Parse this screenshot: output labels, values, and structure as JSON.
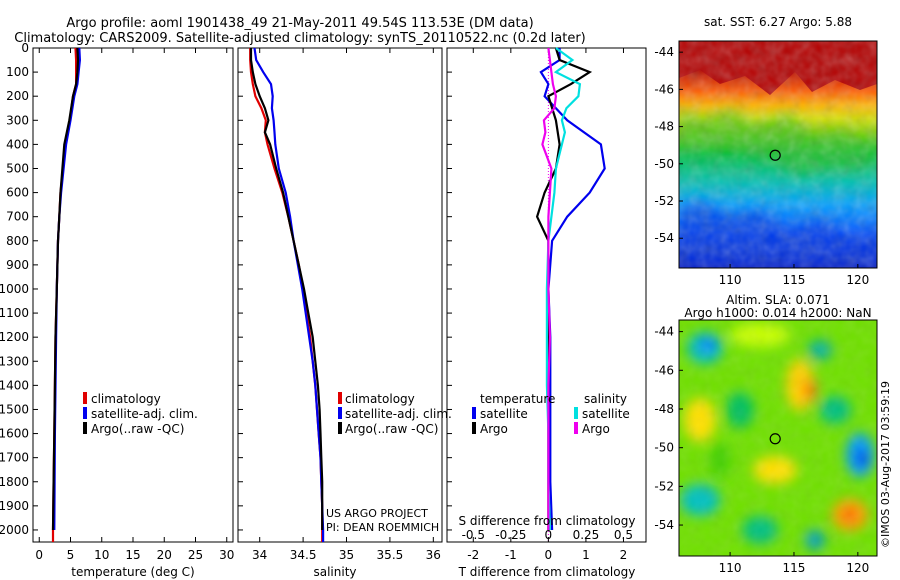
{
  "header": {
    "title_line1": "Argo profile: aoml 1901438_49 21-May-2011 49.54S 113.53E (DM data)",
    "title_line2": "Climatology: CARS2009. Satellite-adjusted climatology: synTS_20110522.nc (0.2d later)"
  },
  "credits": {
    "project": "US ARGO PROJECT",
    "pi": "PI: DEAN ROEMMICH",
    "imos": "©IMOS 03-Aug-2017 03:59:19"
  },
  "colors": {
    "climatology": "#e00000",
    "satellite": "#0000ee",
    "argo": "#000000",
    "sat_salinity": "#00e0e0",
    "argo_salinity": "#ee00ee"
  },
  "chart_data": [
    {
      "type": "line",
      "name": "temperature-panel",
      "xlabel": "temperature (deg C)",
      "ylabel": "",
      "xlim": [
        -1,
        31
      ],
      "ylim": [
        2050,
        0
      ],
      "xticks": [
        "0",
        "5",
        "10",
        "15",
        "20",
        "25",
        "30"
      ],
      "yticks": [
        "0",
        "100",
        "200",
        "300",
        "400",
        "500",
        "600",
        "700",
        "800",
        "900",
        "1000",
        "1100",
        "1200",
        "1300",
        "1400",
        "1500",
        "1600",
        "1700",
        "1800",
        "1900",
        "2000"
      ],
      "legend": [
        "climatology",
        "satellite-adj. clim.",
        "Argo(..raw -QC)"
      ],
      "legend_position": "middle",
      "series": [
        {
          "name": "climatology",
          "color": "#e00000",
          "depth": [
            0,
            50,
            100,
            150,
            200,
            300,
            400,
            500,
            600,
            700,
            800,
            1000,
            1200,
            1400,
            1600,
            1800,
            2000,
            2050
          ],
          "values": [
            5.8,
            5.9,
            5.9,
            5.9,
            5.4,
            4.9,
            4.2,
            3.8,
            3.4,
            3.2,
            3.0,
            2.8,
            2.6,
            2.5,
            2.4,
            2.3,
            2.2,
            2.2
          ]
        },
        {
          "name": "satellite-adj. clim.",
          "color": "#0000ee",
          "depth": [
            0,
            50,
            100,
            150,
            200,
            300,
            400,
            500,
            600,
            700,
            800,
            1000,
            1200,
            1400,
            1600,
            1800,
            2000
          ],
          "values": [
            6.4,
            6.5,
            6.3,
            6.1,
            5.6,
            5.0,
            4.3,
            3.9,
            3.5,
            3.2,
            3.0,
            2.8,
            2.7,
            2.6,
            2.5,
            2.45,
            2.4
          ]
        },
        {
          "name": "Argo(..raw -QC)",
          "color": "#000000",
          "depth": [
            0,
            50,
            100,
            150,
            200,
            300,
            400,
            500,
            600,
            700,
            800,
            1000,
            1200,
            1400,
            1600,
            1800,
            2000
          ],
          "values": [
            6.1,
            6.2,
            6.1,
            5.9,
            5.4,
            4.8,
            4.0,
            3.7,
            3.4,
            3.2,
            3.0,
            2.8,
            2.6,
            2.5,
            2.4,
            2.3,
            2.2
          ]
        }
      ]
    },
    {
      "type": "line",
      "name": "salinity-panel",
      "xlabel": "salinity",
      "ylabel": "",
      "xlim": [
        33.75,
        36.1
      ],
      "ylim": [
        2050,
        0
      ],
      "xticks": [
        "34",
        "34.5",
        "35",
        "35.5",
        "36"
      ],
      "legend": [
        "climatology",
        "satellite-adj. clim.",
        "Argo(..raw -QC)"
      ],
      "legend_position": "middle",
      "series": [
        {
          "name": "climatology",
          "color": "#e00000",
          "depth": [
            0,
            50,
            100,
            150,
            200,
            250,
            300,
            350,
            400,
            500,
            600,
            700,
            800,
            900,
            1000,
            1100,
            1200,
            1300,
            1400,
            1500,
            1600,
            1700,
            1800,
            1900,
            2000,
            2050
          ],
          "values": [
            33.89,
            33.89,
            33.9,
            33.92,
            33.95,
            34.02,
            34.07,
            34.06,
            34.09,
            34.17,
            34.26,
            34.33,
            34.39,
            34.45,
            34.5,
            34.54,
            34.58,
            34.61,
            34.64,
            34.66,
            34.68,
            34.7,
            34.71,
            34.72,
            34.72,
            34.72
          ]
        },
        {
          "name": "satellite-adj. clim.",
          "color": "#0000ee",
          "depth": [
            0,
            50,
            100,
            150,
            200,
            250,
            300,
            350,
            400,
            500,
            600,
            700,
            800,
            900,
            1000,
            1100,
            1200,
            1300,
            1400,
            1500,
            1600,
            1700,
            1800,
            1900,
            2000,
            2050
          ],
          "values": [
            33.94,
            33.96,
            34.04,
            34.13,
            34.15,
            34.14,
            34.16,
            34.17,
            34.18,
            34.22,
            34.3,
            34.35,
            34.39,
            34.44,
            34.49,
            34.53,
            34.57,
            34.61,
            34.64,
            34.66,
            34.68,
            34.7,
            34.71,
            34.72,
            34.73,
            34.73
          ]
        },
        {
          "name": "Argo(..raw -QC)",
          "color": "#000000",
          "depth": [
            0,
            50,
            100,
            150,
            200,
            250,
            300,
            350,
            400,
            500,
            600,
            700,
            800,
            900,
            1000,
            1100,
            1200,
            1300,
            1400,
            1500,
            1600,
            1700,
            1800,
            1900,
            2000
          ],
          "values": [
            33.9,
            33.9,
            33.92,
            33.95,
            34.0,
            34.06,
            34.1,
            34.06,
            34.12,
            34.19,
            34.27,
            34.33,
            34.39,
            34.45,
            34.51,
            34.56,
            34.61,
            34.64,
            34.67,
            34.69,
            34.7,
            34.71,
            34.72,
            34.72,
            34.72
          ]
        }
      ]
    },
    {
      "type": "line",
      "name": "difference-panel",
      "xlabel": "T difference from climatology",
      "x2label": "S difference from climatology",
      "ylabel": "",
      "xlim": [
        -2.7,
        2.6
      ],
      "ylim": [
        2050,
        0
      ],
      "xticks": [
        "-2",
        "-1",
        "0",
        "1",
        "2"
      ],
      "x2ticks": [
        "-0.5",
        "-0.25",
        "0",
        "0.25",
        "0.5"
      ],
      "legend_titles": [
        "temperature",
        "salinity"
      ],
      "legend_temperature": [
        "satellite",
        "Argo"
      ],
      "legend_salinity": [
        "satellite",
        "Argo"
      ],
      "legend_position": "middle",
      "series": [
        {
          "name": "temperature satellite",
          "color": "#0000ee",
          "depth": [
            0,
            50,
            100,
            150,
            200,
            300,
            400,
            500,
            600,
            700,
            800,
            1000,
            1200,
            1400,
            1600,
            1800,
            2000
          ],
          "values": [
            0.3,
            0.3,
            -0.2,
            0.0,
            -0.1,
            0.5,
            1.4,
            1.5,
            1.1,
            0.5,
            0.1,
            0.0,
            0.05,
            0.05,
            0.05,
            0.05,
            0.1
          ]
        },
        {
          "name": "temperature Argo",
          "color": "#000000",
          "depth": [
            0,
            50,
            100,
            150,
            200,
            300,
            400,
            500,
            600,
            700,
            800,
            1000,
            1200,
            1400,
            1600,
            1800,
            2000
          ],
          "values": [
            0.2,
            0.3,
            1.1,
            0.6,
            0.0,
            0.2,
            0.3,
            0.2,
            -0.1,
            -0.3,
            0.0,
            0.0,
            0.0,
            0.0,
            0.0,
            0.0,
            0.0
          ]
        },
        {
          "name": "salinity satellite",
          "color": "#00e0e0",
          "depth": [
            0,
            50,
            100,
            150,
            200,
            250,
            300,
            350,
            400,
            500,
            600,
            700,
            800,
            1000,
            1200,
            1400,
            1600,
            1800,
            2000
          ],
          "values": [
            0.05,
            0.16,
            0.05,
            0.21,
            0.2,
            0.12,
            0.09,
            0.11,
            0.09,
            0.05,
            0.04,
            0.02,
            0.0,
            -0.01,
            -0.01,
            -0.01,
            0.0,
            0.0,
            0.01
          ]
        },
        {
          "name": "salinity Argo",
          "color": "#ee00ee",
          "depth": [
            0,
            50,
            100,
            150,
            200,
            250,
            300,
            350,
            400,
            500,
            600,
            700,
            800,
            1000,
            1200,
            1400,
            1600,
            1800,
            2000
          ],
          "values": [
            0.0,
            0.01,
            0.02,
            0.03,
            0.05,
            0.04,
            -0.03,
            -0.02,
            -0.04,
            0.02,
            0.01,
            0.0,
            0.0,
            0.0,
            0.01,
            0.0,
            0.0,
            0.0,
            0.0
          ]
        }
      ]
    },
    {
      "type": "heatmap",
      "name": "sst-map",
      "title": "sat. SST: 6.27 Argo: 5.88",
      "xticks": [
        "110",
        "115",
        "120"
      ],
      "yticks": [
        "-44",
        "-46",
        "-48",
        "-50",
        "-52",
        "-54"
      ],
      "xlim": [
        106,
        121.5
      ],
      "ylim": [
        -55.6,
        -43.4
      ],
      "marker": {
        "lon": 113.53,
        "lat": -49.54
      }
    },
    {
      "type": "heatmap",
      "name": "sla-map",
      "title": "Altim. SLA: 0.071",
      "subtitle": "Argo h1000: 0.014 h2000: NaN",
      "xticks": [
        "110",
        "115",
        "120"
      ],
      "yticks": [
        "-44",
        "-46",
        "-48",
        "-50",
        "-52",
        "-54"
      ],
      "xlim": [
        106,
        121.5
      ],
      "ylim": [
        -55.6,
        -43.4
      ],
      "marker": {
        "lon": 113.53,
        "lat": -49.54
      }
    }
  ]
}
